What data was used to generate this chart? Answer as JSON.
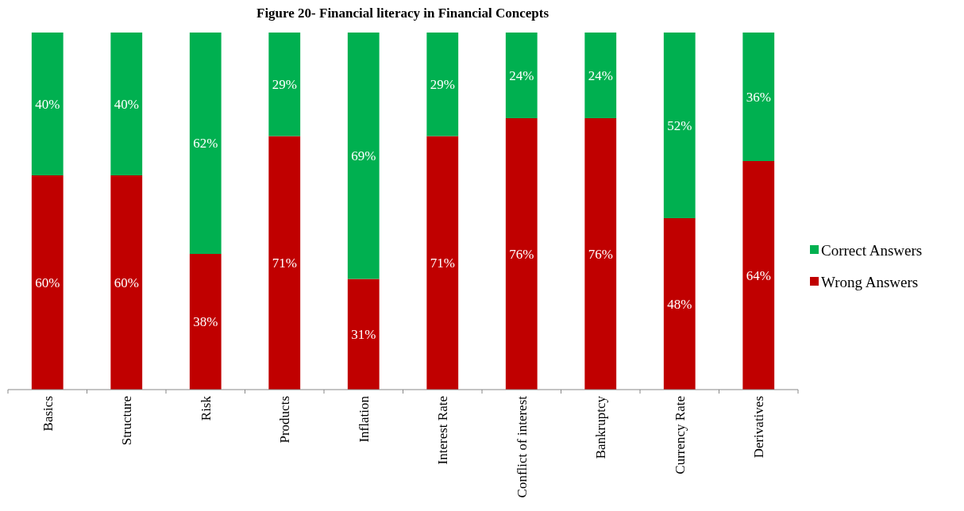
{
  "chart_data": {
    "type": "bar",
    "stacked": true,
    "title": "Figure 20- Financial literacy in Financial Concepts",
    "categories": [
      "Basics",
      "Structure",
      "Risk",
      "Products",
      "Inflation",
      "Interest Rate",
      "Conflict of interest",
      "Bankruptcy",
      "Currency Rate",
      "Derivatives"
    ],
    "series": [
      {
        "name": "Wrong Answers",
        "color": "#c00000",
        "values": [
          60,
          60,
          38,
          71,
          31,
          71,
          76,
          76,
          48,
          64
        ],
        "value_labels": [
          "60%",
          "60%",
          "38%",
          "71%",
          "31%",
          "71%",
          "76%",
          "76%",
          "48%",
          "64%"
        ]
      },
      {
        "name": "Correct Answers",
        "color": "#00b050",
        "values": [
          40,
          40,
          62,
          29,
          69,
          29,
          24,
          24,
          52,
          36
        ],
        "value_labels": [
          "40%",
          "40%",
          "62%",
          "29%",
          "69%",
          "29%",
          "24%",
          "24%",
          "52%",
          "36%"
        ]
      }
    ],
    "legend": "right"
  }
}
